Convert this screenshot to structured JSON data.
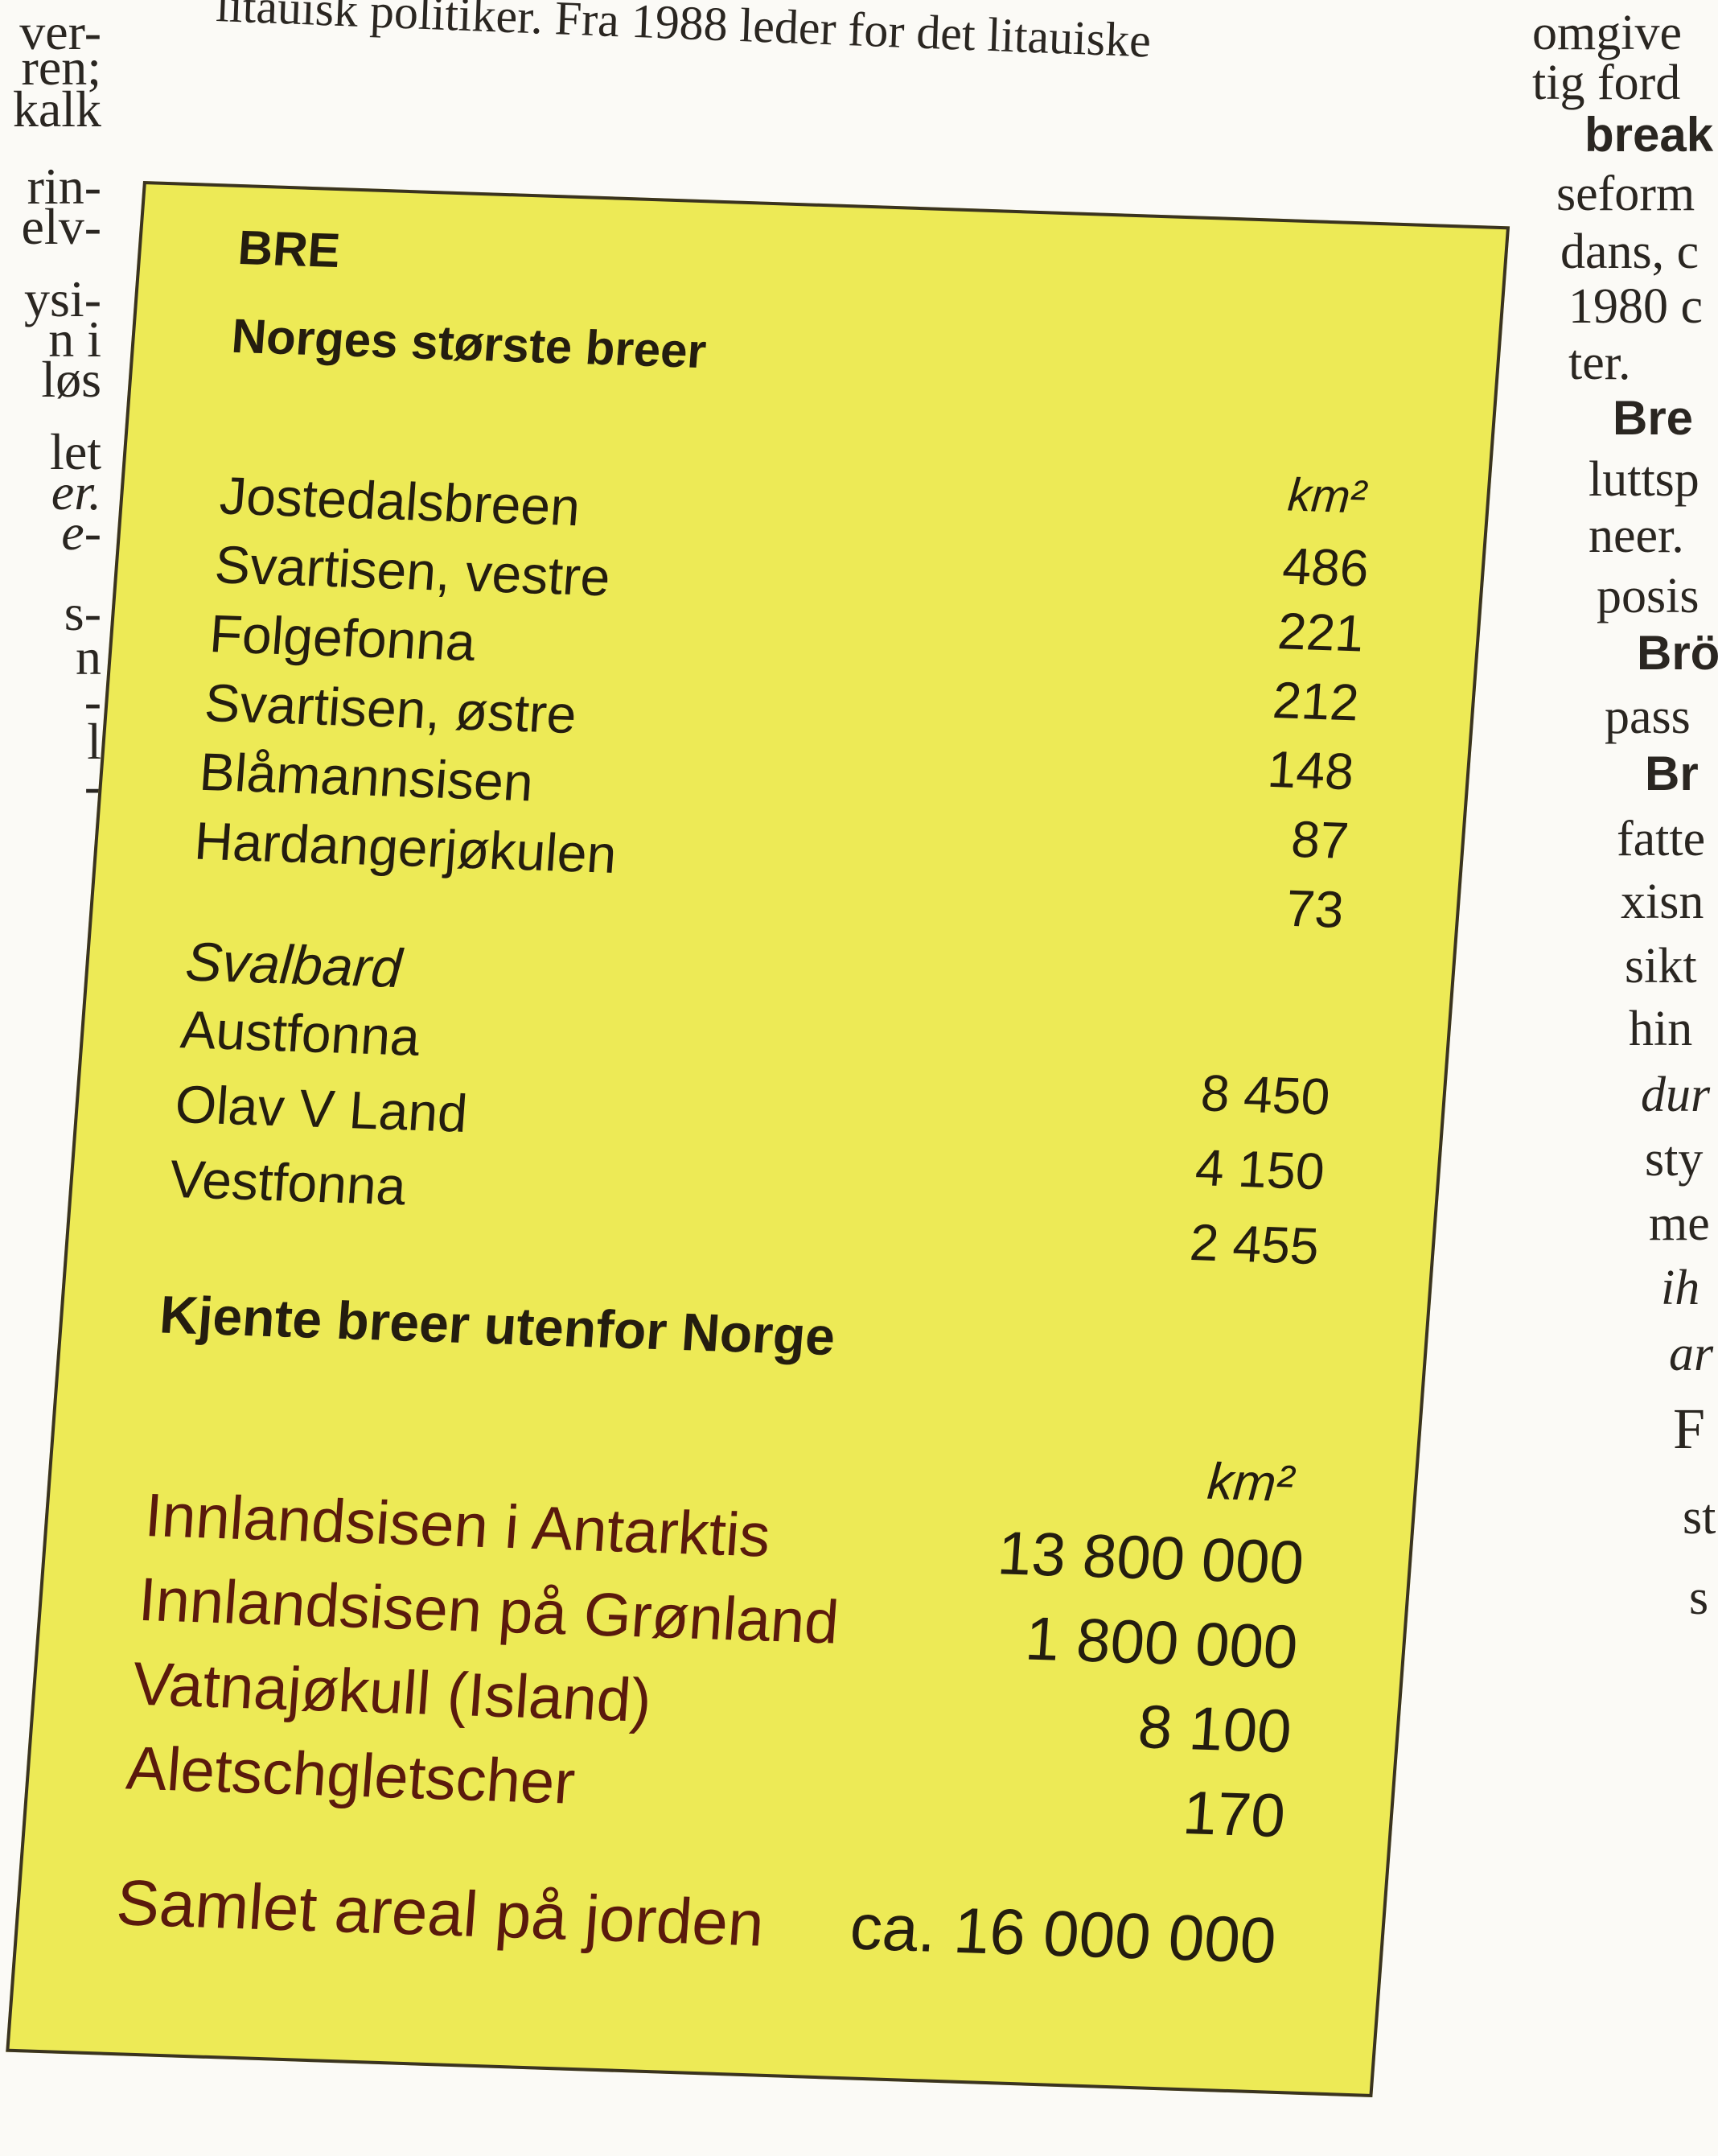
{
  "top_text": "litauisk politiker. Fra 1988 leder for det litauiske",
  "left_margin": [
    "ver-",
    "ren;",
    "kalk",
    "rin-",
    "elv-",
    "ysi-",
    "n i",
    "løs",
    "let",
    "er.",
    "e-",
    "s-",
    "n",
    "-",
    "l",
    "-"
  ],
  "right_margin": [
    "omgive",
    "tig ford",
    "break",
    "seform",
    "dans, c",
    "1980 c",
    "ter.",
    "Bre",
    "luttsp",
    "neer.",
    "posis",
    "Brö",
    "pass",
    "Br",
    "fatte",
    "xisn",
    "sikt",
    "hin",
    "dur",
    "sty",
    "me",
    "ih",
    "ar",
    "F",
    "st",
    "s"
  ],
  "box": {
    "title": "BRE",
    "norway": {
      "heading": "Norges største breer",
      "unit": "km²",
      "rows": [
        {
          "name": "Jostedalsbreen",
          "value": "486"
        },
        {
          "name": "Svartisen, vestre",
          "value": "221"
        },
        {
          "name": "Folgefonna",
          "value": "212"
        },
        {
          "name": "Svartisen, østre",
          "value": "148"
        },
        {
          "name": "Blåmannsisen",
          "value": "87"
        },
        {
          "name": "Hardangerjøkulen",
          "value": "73"
        }
      ]
    },
    "svalbard": {
      "label": "Svalbard",
      "rows": [
        {
          "name": "Austfonna",
          "value": "8 450"
        },
        {
          "name": "Olav V Land",
          "value": "4 150"
        },
        {
          "name": "Vestfonna",
          "value": "2 455"
        }
      ]
    },
    "outside": {
      "heading": "Kjente breer utenfor Norge",
      "unit": "km²",
      "rows": [
        {
          "name": "Innlandsisen i Antarktis",
          "value": "13 800 000"
        },
        {
          "name": "Innlandsisen på Grønland",
          "value": "1 800 000"
        },
        {
          "name": "Vatnajøkull (Island)",
          "value": "8 100"
        },
        {
          "name": "Aletschgletscher",
          "value": "170"
        }
      ]
    },
    "total": {
      "name": "Samlet areal på jorden",
      "value": "ca. 16 000 000"
    }
  }
}
